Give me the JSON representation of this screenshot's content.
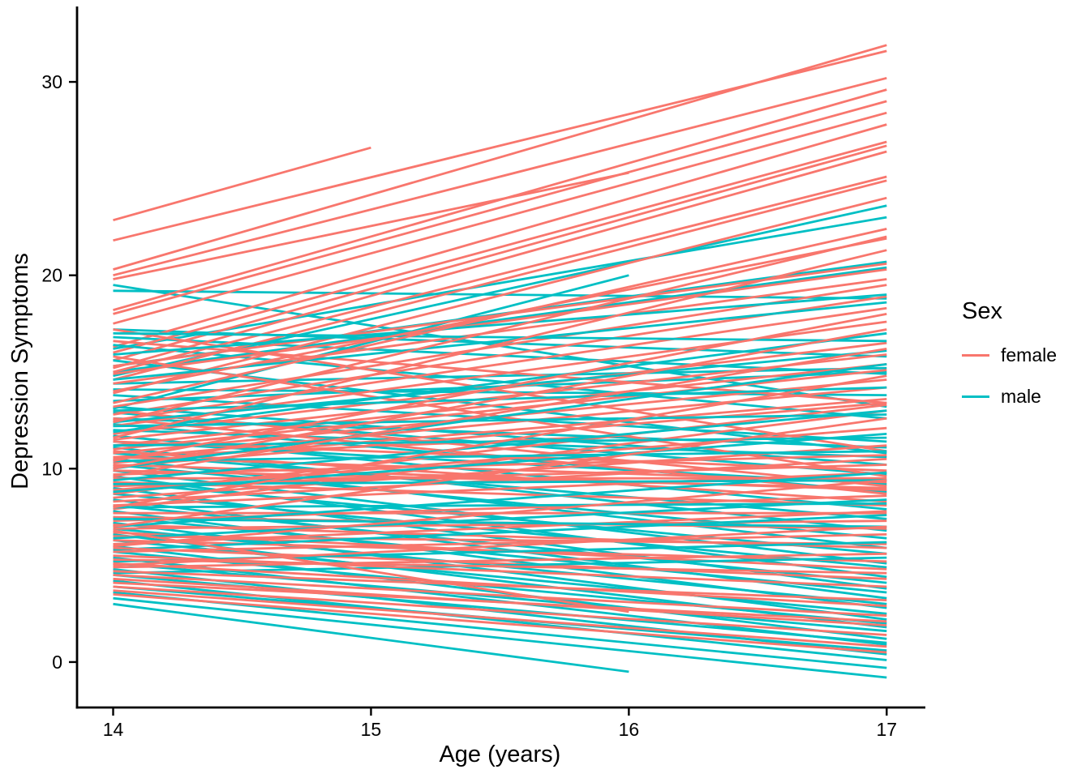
{
  "figure": {
    "background": "#ffffff",
    "text_color": "#000000",
    "axis_color": "#000000"
  },
  "chart_data": {
    "type": "line",
    "title": "",
    "xlabel": "Age (years)",
    "ylabel": "Depression Symptoms",
    "x_ticks": [
      14,
      15,
      16,
      17
    ],
    "y_ticks": [
      0,
      10,
      20,
      30
    ],
    "xlim": [
      13.86,
      17.15
    ],
    "ylim": [
      -2.35,
      33.9
    ],
    "grid": "off",
    "legend": {
      "title": "Sex",
      "position": "right",
      "entries": [
        {
          "label": "female",
          "color": "#F8766D"
        },
        {
          "label": "male",
          "color": "#00BFC4"
        }
      ]
    },
    "series": [
      {
        "name": "female",
        "color": "#F8766D",
        "segments": [
          [
            14,
            22.85,
            15,
            26.6
          ],
          [
            14,
            21.8,
            17,
            31.6
          ],
          [
            14,
            20.3,
            17,
            31.9
          ],
          [
            14,
            20.0,
            17,
            30.2
          ],
          [
            14,
            19.8,
            16,
            25.3
          ],
          [
            14,
            18.2,
            17,
            29.6
          ],
          [
            14,
            18.0,
            17,
            29.0
          ],
          [
            14,
            17.5,
            17,
            28.4
          ],
          [
            14,
            16.3,
            17,
            27.8
          ],
          [
            14,
            16.0,
            17,
            26.9
          ],
          [
            14,
            15.6,
            17,
            26.7
          ],
          [
            14,
            15.2,
            17,
            26.4
          ],
          [
            14,
            15.0,
            17,
            25.1
          ],
          [
            14,
            14.6,
            17,
            24.9
          ],
          [
            14,
            13.9,
            17,
            24.0
          ],
          [
            14,
            10.6,
            16,
            11.7
          ],
          [
            14,
            15.3,
            17,
            20.6
          ],
          [
            14,
            14.9,
            17,
            20.3
          ],
          [
            14,
            14.4,
            17,
            19.8
          ],
          [
            14,
            13.2,
            17,
            19.5
          ],
          [
            14,
            12.8,
            17,
            18.9
          ],
          [
            14,
            12.5,
            17,
            18.3
          ],
          [
            14,
            12.2,
            17,
            17.6
          ],
          [
            14,
            11.8,
            17,
            16.5
          ],
          [
            14,
            11.5,
            17,
            15.9
          ],
          [
            14,
            11.2,
            17,
            15.4
          ],
          [
            14,
            11.0,
            17,
            15.1
          ],
          [
            14,
            10.8,
            17,
            14.6
          ],
          [
            14,
            10.5,
            17,
            14.2
          ],
          [
            14,
            10.3,
            17,
            13.6
          ],
          [
            14,
            10.1,
            17,
            13.4
          ],
          [
            14,
            17.2,
            17,
            10.9
          ],
          [
            14,
            16.6,
            17,
            13.4
          ],
          [
            14,
            15.8,
            17,
            9.6
          ],
          [
            14,
            13.0,
            17,
            9.1
          ],
          [
            14,
            12.6,
            17,
            8.7
          ],
          [
            14,
            11.4,
            17,
            9.9
          ],
          [
            14,
            10.9,
            17,
            8.3
          ],
          [
            14,
            10.6,
            17,
            9.3
          ],
          [
            14,
            10.2,
            17,
            8.9
          ],
          [
            14,
            9.9,
            17,
            9.0
          ],
          [
            14,
            9.7,
            17,
            10.7
          ],
          [
            14,
            9.5,
            17,
            9.5
          ],
          [
            14,
            9.3,
            17,
            8.1
          ],
          [
            14,
            9.1,
            17,
            10.2
          ],
          [
            14,
            8.9,
            17,
            12.1
          ],
          [
            14,
            8.7,
            17,
            13.3
          ],
          [
            14,
            8.5,
            17,
            11.2
          ],
          [
            14,
            8.3,
            17,
            10.5
          ],
          [
            14,
            8.1,
            17,
            9.8
          ],
          [
            14,
            7.9,
            17,
            13.0
          ],
          [
            14,
            7.7,
            17,
            7.7
          ],
          [
            14,
            7.5,
            17,
            6.9
          ],
          [
            14,
            7.3,
            17,
            8.6
          ],
          [
            14,
            7.1,
            17,
            5.9
          ],
          [
            14,
            6.9,
            17,
            7.3
          ],
          [
            14,
            6.7,
            17,
            4.8
          ],
          [
            14,
            6.5,
            17,
            6.1
          ],
          [
            14,
            6.3,
            17,
            5.2
          ],
          [
            14,
            6.1,
            17,
            7.8
          ],
          [
            14,
            5.9,
            17,
            4.3
          ],
          [
            14,
            5.7,
            17,
            6.6
          ],
          [
            14,
            5.5,
            17,
            3.9
          ],
          [
            14,
            5.3,
            17,
            4.6
          ],
          [
            14,
            5.1,
            17,
            2.9
          ],
          [
            14,
            4.9,
            17,
            5.6
          ],
          [
            14,
            4.7,
            17,
            3.2
          ],
          [
            14,
            4.5,
            17,
            2.4
          ],
          [
            14,
            4.3,
            17,
            1.9
          ],
          [
            14,
            4.1,
            17,
            2.1
          ],
          [
            14,
            3.9,
            17,
            1.4
          ],
          [
            14,
            3.7,
            17,
            0.8
          ],
          [
            14,
            3.5,
            17,
            0.5
          ],
          [
            14,
            6.8,
            16,
            2.6
          ],
          [
            14,
            9.6,
            17,
            16.2
          ],
          [
            14,
            10.0,
            17,
            17.2
          ],
          [
            14,
            10.4,
            17,
            18.0
          ],
          [
            14,
            11.6,
            17,
            21.3
          ],
          [
            14,
            12.4,
            17,
            22.0
          ],
          [
            14,
            13.4,
            17,
            22.4
          ],
          [
            14,
            14.0,
            17,
            21.9
          ],
          [
            14,
            8.0,
            17,
            14.8
          ],
          [
            14,
            7.0,
            17,
            12.6
          ],
          [
            14,
            6.0,
            17,
            9.4
          ],
          [
            14,
            5.0,
            17,
            7.0
          ]
        ]
      },
      {
        "name": "male",
        "color": "#00BFC4",
        "segments": [
          [
            14,
            19.5,
            17,
            13.2
          ],
          [
            14,
            19.2,
            17,
            18.8
          ],
          [
            14,
            14.8,
            17,
            23.6
          ],
          [
            14,
            16.2,
            17,
            23.0
          ],
          [
            14,
            13.1,
            16,
            20.0
          ],
          [
            14,
            15.3,
            17,
            20.7
          ],
          [
            14,
            15.0,
            17,
            20.4
          ],
          [
            14,
            17.2,
            17,
            15.8
          ],
          [
            14,
            16.8,
            17,
            14.9
          ],
          [
            14,
            16.4,
            17,
            12.6
          ],
          [
            14,
            15.6,
            17,
            10.8
          ],
          [
            14,
            14.4,
            17,
            15.2
          ],
          [
            14,
            14.1,
            17,
            13.8
          ],
          [
            14,
            13.8,
            17,
            11.4
          ],
          [
            14,
            13.5,
            17,
            15.0
          ],
          [
            14,
            13.2,
            17,
            10.2
          ],
          [
            14,
            12.9,
            17,
            9.7
          ],
          [
            14,
            12.6,
            17,
            11.1
          ],
          [
            14,
            12.3,
            17,
            8.8
          ],
          [
            14,
            12.0,
            17,
            10.6
          ],
          [
            14,
            11.7,
            17,
            7.9
          ],
          [
            14,
            11.4,
            17,
            9.2
          ],
          [
            14,
            11.1,
            17,
            6.8
          ],
          [
            14,
            10.8,
            17,
            7.4
          ],
          [
            14,
            10.5,
            17,
            5.9
          ],
          [
            14,
            10.2,
            17,
            6.4
          ],
          [
            14,
            9.9,
            17,
            5.1
          ],
          [
            14,
            9.6,
            17,
            4.4
          ],
          [
            14,
            9.3,
            17,
            5.6
          ],
          [
            14,
            9.0,
            17,
            3.8
          ],
          [
            14,
            8.7,
            17,
            4.9
          ],
          [
            14,
            8.4,
            17,
            3.3
          ],
          [
            14,
            8.1,
            17,
            4.1
          ],
          [
            14,
            7.8,
            17,
            2.8
          ],
          [
            14,
            7.5,
            17,
            3.6
          ],
          [
            14,
            7.2,
            17,
            2.2
          ],
          [
            14,
            6.9,
            17,
            3.0
          ],
          [
            14,
            6.6,
            17,
            1.8
          ],
          [
            14,
            6.3,
            17,
            2.5
          ],
          [
            14,
            6.0,
            17,
            1.2
          ],
          [
            14,
            5.7,
            17,
            2.0
          ],
          [
            14,
            5.4,
            17,
            0.9
          ],
          [
            14,
            5.1,
            17,
            1.6
          ],
          [
            14,
            4.8,
            17,
            0.4
          ],
          [
            14,
            4.5,
            17,
            1.0
          ],
          [
            14,
            4.2,
            17,
            0.1
          ],
          [
            14,
            3.9,
            17,
            0.6
          ],
          [
            14,
            3.6,
            17,
            -0.3
          ],
          [
            14,
            3.3,
            17,
            -0.8
          ],
          [
            14,
            3.0,
            16,
            -0.5
          ],
          [
            14,
            12.4,
            17,
            16.1
          ],
          [
            14,
            11.9,
            17,
            17.0
          ],
          [
            14,
            10.0,
            17,
            15.4
          ],
          [
            14,
            9.4,
            17,
            13.0
          ],
          [
            14,
            8.8,
            17,
            11.8
          ],
          [
            14,
            14.6,
            17,
            18.6
          ],
          [
            14,
            15.9,
            17,
            19.0
          ],
          [
            14,
            7.0,
            17,
            9.8
          ],
          [
            14,
            6.4,
            17,
            8.4
          ],
          [
            14,
            5.8,
            17,
            7.6
          ],
          [
            14,
            5.2,
            17,
            6.2
          ],
          [
            14,
            4.6,
            17,
            5.4
          ],
          [
            14,
            17.0,
            17,
            16.6
          ],
          [
            14,
            13.0,
            17,
            14.2
          ],
          [
            14,
            12.2,
            17,
            12.8
          ],
          [
            14,
            11.2,
            17,
            11.6
          ],
          [
            14,
            10.4,
            17,
            10.9
          ],
          [
            14,
            9.2,
            17,
            9.4
          ],
          [
            14,
            8.0,
            17,
            8.2
          ],
          [
            14,
            7.4,
            17,
            7.0
          ]
        ]
      }
    ]
  }
}
